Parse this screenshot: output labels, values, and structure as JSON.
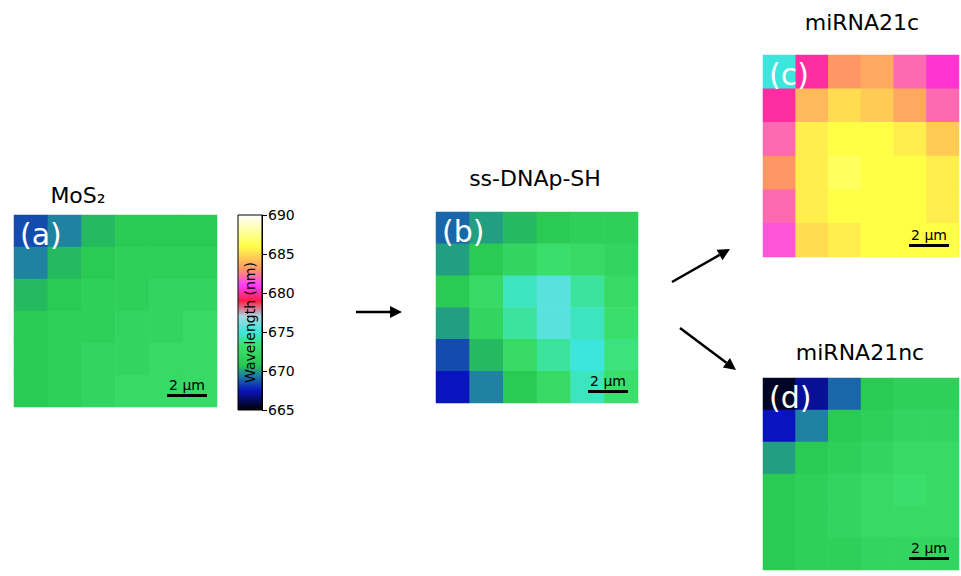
{
  "chart_data": {
    "type": "heatmap",
    "colorbar": {
      "title": "Wavelength (nm)",
      "range": [
        665,
        690
      ],
      "ticks": [
        665,
        670,
        675,
        680,
        685,
        690
      ]
    },
    "panels": [
      {
        "label": "(a)",
        "title": "MoS₂",
        "scale_bar": "2 μm",
        "cells": [
          [
            668.5,
            669.5,
            670.5,
            671,
            671,
            671
          ],
          [
            669.5,
            670.5,
            671,
            671.5,
            671.5,
            671.5
          ],
          [
            670.5,
            671,
            671.5,
            671.5,
            672,
            672
          ],
          [
            671,
            671.5,
            671.5,
            672,
            672,
            672.5
          ],
          [
            671,
            671.5,
            672,
            672,
            672.5,
            672.5
          ],
          [
            671,
            671.5,
            672,
            672.5,
            672.5,
            672.5
          ]
        ]
      },
      {
        "label": "(b)",
        "title": "ss-DNAp-SH",
        "scale_bar": "2 μm",
        "cells": [
          [
            669,
            670,
            670.5,
            671,
            671.5,
            671.5
          ],
          [
            670,
            671,
            672,
            673,
            672.5,
            672
          ],
          [
            671,
            672.5,
            674.5,
            675.5,
            674,
            672.5
          ],
          [
            670,
            672,
            674,
            675.5,
            674.5,
            673
          ],
          [
            668.5,
            670.5,
            672.5,
            674,
            675,
            673.5
          ],
          [
            667.5,
            669.5,
            671,
            672.5,
            674.5,
            673
          ]
        ]
      },
      {
        "label": "(c)",
        "title": "miRNA21c",
        "scale_bar": "2 μm",
        "cells": [
          [
            675,
            680,
            683,
            683.5,
            682,
            680.5
          ],
          [
            680,
            684,
            685,
            684.5,
            683.5,
            682
          ],
          [
            682,
            685.5,
            686,
            686,
            685.5,
            684.5
          ],
          [
            683,
            685.5,
            686.5,
            686,
            686,
            685.5
          ],
          [
            682,
            685.5,
            686,
            686,
            686,
            685.5
          ],
          [
            681.5,
            685,
            685.5,
            686,
            686,
            686
          ]
        ]
      },
      {
        "label": "(d)",
        "title": "miRNA21nc",
        "scale_bar": "2 μm",
        "cells": [
          [
            665.5,
            667,
            669,
            671,
            671.5,
            671.5
          ],
          [
            667.5,
            669.5,
            671,
            671.5,
            672,
            672
          ],
          [
            670,
            671,
            671.5,
            672,
            672.5,
            672.5
          ],
          [
            671,
            671.5,
            672,
            672.5,
            673,
            672.5
          ],
          [
            671,
            671.5,
            672,
            672.5,
            672.5,
            672.5
          ],
          [
            671,
            671.5,
            671.5,
            672,
            672,
            672
          ]
        ]
      }
    ]
  }
}
